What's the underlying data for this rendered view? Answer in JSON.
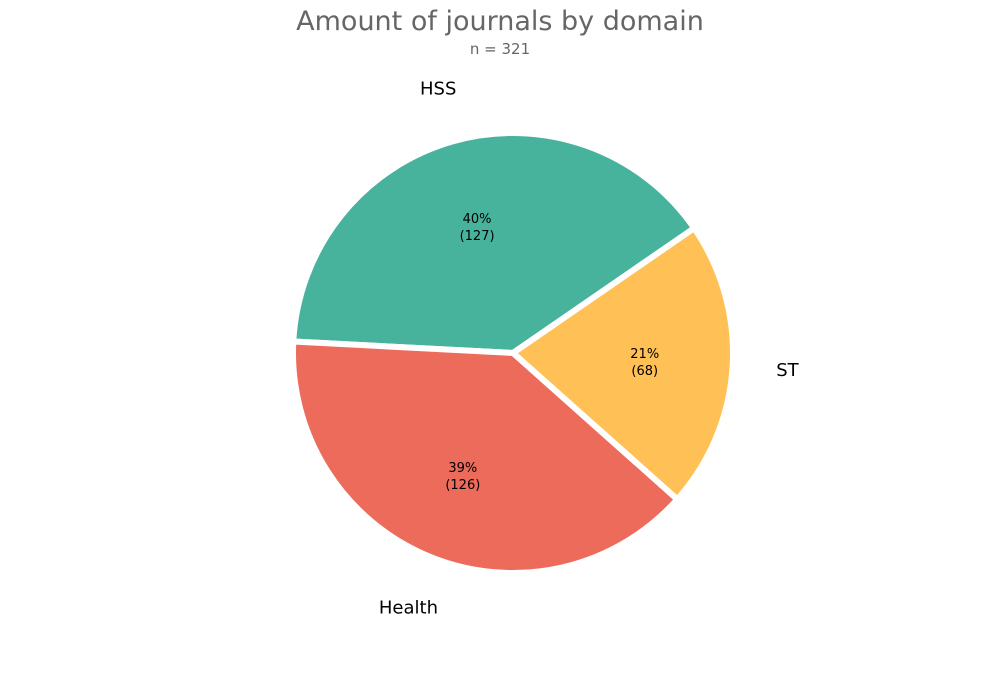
{
  "chart_data": {
    "type": "pie",
    "title": "Amount of journals by domain",
    "subtitle": "n = 321",
    "slices": [
      {
        "label": "HSS",
        "value": 127,
        "percent_label": "40%",
        "count_label": "(127)",
        "color": "#48B39C"
      },
      {
        "label": "ST",
        "value": 68,
        "percent_label": "21%",
        "count_label": "(68)",
        "color": "#FFC055"
      },
      {
        "label": "Health",
        "value": 126,
        "percent_label": "39%",
        "count_label": "(126)",
        "color": "#EC6B5A"
      }
    ],
    "legend": "none",
    "grid": false
  }
}
